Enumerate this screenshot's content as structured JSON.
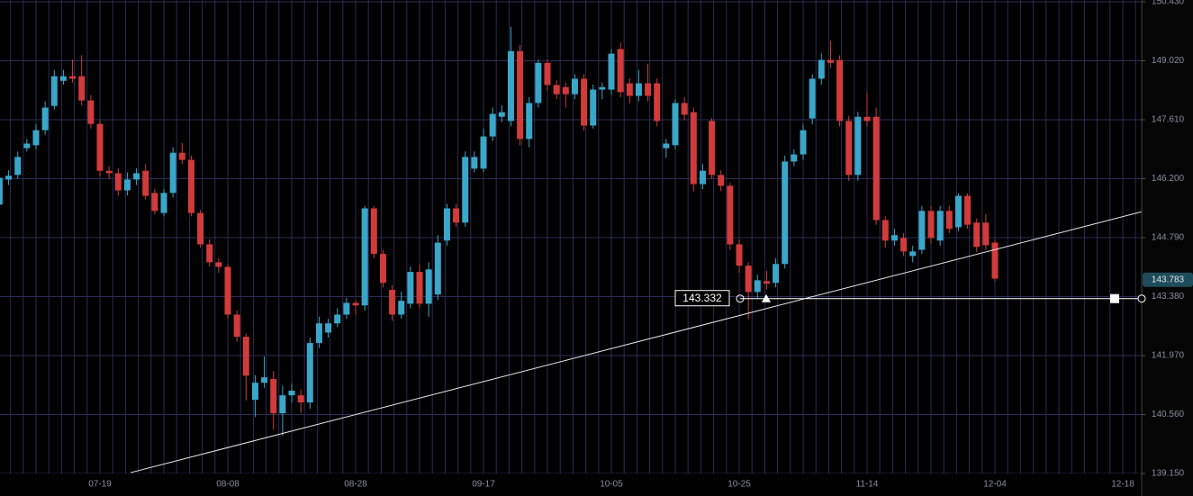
{
  "chart_data": {
    "type": "candlestick",
    "up_color": "#3aa6c9",
    "down_color": "#d13b3b",
    "grid": true,
    "ylim": [
      139.15,
      150.43
    ],
    "yticks": [
      {
        "value": 139.15,
        "label": "139.150"
      },
      {
        "value": 140.56,
        "label": "140.560"
      },
      {
        "value": 141.97,
        "label": "141.970"
      },
      {
        "value": 143.38,
        "label": "143.380"
      },
      {
        "value": 144.79,
        "label": "144.790"
      },
      {
        "value": 146.2,
        "label": "146.200"
      },
      {
        "value": 147.61,
        "label": "147.610"
      },
      {
        "value": 149.02,
        "label": "149.020"
      },
      {
        "value": 150.43,
        "label": "150.430"
      }
    ],
    "categories": [
      null,
      null,
      null,
      null,
      null,
      null,
      null,
      null,
      null,
      null,
      null,
      "07-19",
      null,
      null,
      null,
      null,
      null,
      null,
      null,
      null,
      null,
      null,
      null,
      null,
      null,
      "08-08",
      null,
      null,
      null,
      null,
      null,
      null,
      null,
      null,
      null,
      null,
      null,
      null,
      null,
      "08-28",
      null,
      null,
      null,
      null,
      null,
      null,
      null,
      null,
      null,
      null,
      null,
      null,
      null,
      "09-17",
      null,
      null,
      null,
      null,
      null,
      null,
      null,
      null,
      null,
      null,
      null,
      null,
      null,
      "10-05",
      null,
      null,
      null,
      null,
      null,
      null,
      null,
      null,
      null,
      null,
      null,
      null,
      null,
      "10-25",
      null,
      null,
      null,
      null,
      null,
      null,
      null,
      null,
      null,
      null,
      null,
      null,
      null,
      "11-14",
      null,
      null,
      null,
      null,
      null,
      null,
      null,
      null,
      null,
      null,
      null,
      null,
      null,
      "12-04",
      null,
      null,
      null,
      null,
      null,
      null,
      null,
      null,
      null,
      null,
      null,
      null,
      null,
      "12-18"
    ],
    "open": [
      145.58,
      146.18,
      146.29,
      146.93,
      147.0,
      147.36,
      147.94,
      148.54,
      148.65,
      148.65,
      148.07,
      147.51,
      146.39,
      146.33,
      145.92,
      146.18,
      146.39,
      145.86,
      145.38,
      145.86,
      146.82,
      146.65,
      145.38,
      144.63,
      144.2,
      144.09,
      142.95,
      142.42,
      140.91,
      141.32,
      141.41,
      140.59,
      141.02,
      141.02,
      140.85,
      142.27,
      142.52,
      142.74,
      142.95,
      143.23,
      143.17,
      145.49,
      144.4,
      143.54,
      142.95,
      143.21,
      143.97,
      143.21,
      143.43,
      144.72,
      145.49,
      145.15,
      146.44,
      146.44,
      147.21,
      147.68,
      147.58,
      149.25,
      147.15,
      148.01,
      148.97,
      148.44,
      148.39,
      148.22,
      148.59,
      147.47,
      148.33,
      148.33,
      149.3,
      148.48,
      148.18,
      148.48,
      148.48,
      146.93,
      147.0,
      148.01,
      147.79,
      146.07,
      147.58,
      146.29,
      146.03,
      144.63,
      144.12,
      143.49,
      143.75,
      143.71,
      144.16,
      146.61,
      146.78,
      147.64,
      148.59,
      149.04,
      149.04,
      147.58,
      146.29,
      147.68,
      147.68,
      145.21,
      144.72,
      144.78,
      144.35,
      144.5,
      145.43,
      144.72,
      145.43,
      145.04,
      145.79,
      145.15,
      145.15,
      144.67,
      null,
      null,
      null,
      null,
      null,
      null,
      null,
      null,
      null,
      null,
      null,
      null,
      null,
      null
    ],
    "high": [
      146.35,
      146.4,
      146.85,
      147.15,
      147.5,
      148.05,
      148.8,
      148.8,
      149.05,
      149.15,
      148.2,
      147.6,
      146.5,
      146.45,
      146.35,
      146.45,
      146.55,
      145.95,
      145.95,
      146.95,
      147.05,
      146.75,
      145.45,
      144.75,
      144.3,
      144.15,
      143.05,
      142.5,
      141.5,
      141.95,
      141.6,
      141.25,
      141.3,
      141.15,
      142.4,
      142.9,
      142.85,
      143.1,
      143.35,
      143.3,
      145.55,
      145.55,
      144.5,
      143.65,
      143.5,
      144.1,
      144.15,
      144.2,
      144.85,
      145.6,
      145.6,
      146.85,
      146.85,
      147.4,
      147.9,
      147.95,
      149.83,
      149.4,
      148.15,
      149.05,
      149.05,
      148.55,
      148.5,
      148.7,
      148.7,
      148.45,
      148.5,
      149.3,
      149.45,
      148.6,
      148.8,
      148.95,
      148.6,
      147.15,
      148.1,
      148.15,
      147.9,
      146.55,
      147.65,
      146.4,
      146.1,
      144.75,
      144.2,
      143.9,
      144.0,
      144.3,
      146.75,
      146.9,
      147.5,
      148.7,
      149.2,
      149.5,
      149.15,
      147.7,
      147.8,
      148.25,
      147.9,
      145.3,
      145.0,
      144.9,
      144.6,
      145.55,
      145.55,
      145.55,
      145.55,
      145.85,
      145.85,
      145.25,
      145.35,
      144.75,
      null,
      null,
      null,
      null,
      null,
      null,
      null,
      null,
      null,
      null,
      null,
      null,
      null,
      null
    ],
    "low": [
      145.45,
      146.05,
      146.2,
      146.85,
      146.9,
      147.25,
      147.85,
      148.45,
      148.5,
      147.95,
      147.4,
      146.25,
      146.2,
      145.8,
      145.8,
      146.05,
      145.7,
      145.35,
      145.3,
      145.75,
      146.55,
      145.3,
      144.55,
      144.1,
      143.95,
      142.85,
      142.3,
      140.9,
      140.5,
      141.2,
      140.2,
      140.05,
      140.85,
      140.6,
      140.7,
      142.15,
      142.4,
      142.65,
      142.85,
      142.95,
      143.05,
      144.3,
      143.6,
      142.8,
      142.85,
      143.1,
      143.1,
      142.9,
      143.3,
      144.6,
      145.05,
      145.05,
      146.35,
      146.35,
      147.1,
      147.55,
      147.45,
      147.0,
      146.95,
      147.9,
      148.3,
      148.1,
      147.9,
      148.1,
      147.35,
      147.4,
      148.1,
      148.2,
      148.15,
      148.0,
      148.05,
      148.05,
      147.45,
      146.7,
      146.9,
      147.6,
      145.9,
      145.95,
      146.2,
      145.9,
      144.5,
      143.95,
      142.84,
      143.35,
      143.55,
      143.6,
      144.05,
      146.5,
      146.65,
      147.5,
      148.45,
      148.85,
      147.45,
      146.15,
      146.15,
      147.45,
      145.1,
      144.55,
      144.6,
      144.35,
      144.2,
      144.4,
      144.65,
      144.6,
      144.9,
      144.95,
      145.0,
      144.45,
      144.5,
      143.75,
      null,
      null,
      null,
      null,
      null,
      null,
      null,
      null,
      null,
      null,
      null,
      null,
      null,
      null
    ],
    "close": [
      146.22,
      146.27,
      146.72,
      147.04,
      147.36,
      147.9,
      148.65,
      148.65,
      148.59,
      148.07,
      147.51,
      146.39,
      146.33,
      145.92,
      146.18,
      146.33,
      145.79,
      145.43,
      145.86,
      146.82,
      146.65,
      145.38,
      144.63,
      144.2,
      144.09,
      142.95,
      142.42,
      141.49,
      141.32,
      141.45,
      140.59,
      141.02,
      141.13,
      140.85,
      142.27,
      142.74,
      142.74,
      142.95,
      143.23,
      143.17,
      145.49,
      144.4,
      143.71,
      142.95,
      143.28,
      143.97,
      143.21,
      144.03,
      144.67,
      145.49,
      145.15,
      146.72,
      146.72,
      147.21,
      147.75,
      147.79,
      149.25,
      147.15,
      148.01,
      148.97,
      148.44,
      148.22,
      148.22,
      148.59,
      147.47,
      148.33,
      148.39,
      149.19,
      148.27,
      148.18,
      148.48,
      148.18,
      147.58,
      147.04,
      148.01,
      147.73,
      146.07,
      146.39,
      146.29,
      146.03,
      144.63,
      144.12,
      143.49,
      143.77,
      143.69,
      144.16,
      146.61,
      146.78,
      147.36,
      148.59,
      149.04,
      148.97,
      147.58,
      146.29,
      147.68,
      147.58,
      145.21,
      144.72,
      144.85,
      144.46,
      144.46,
      145.43,
      144.78,
      145.43,
      145.0,
      145.79,
      145.1,
      144.57,
      144.61,
      143.81,
      null,
      null,
      null,
      null,
      null,
      null,
      null,
      null,
      null,
      null,
      null,
      null,
      null,
      null
    ],
    "last_price": 143.783,
    "level": 143.332,
    "trendline": {
      "x": [
        14.35,
        125.07
      ],
      "y": [
        139.17,
        145.41
      ]
    }
  }
}
